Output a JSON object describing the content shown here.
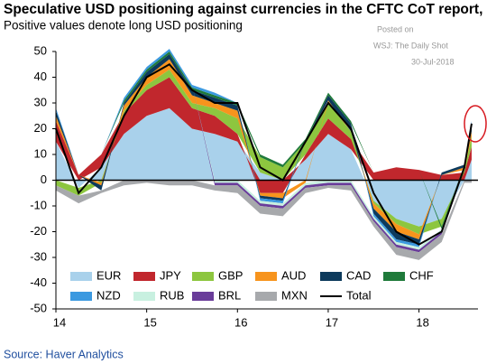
{
  "chart_data": {
    "type": "stacked_area",
    "title": "Speculative USD positioning against currencies in the CFTC CoT report, in $ bn",
    "subtitle": "Positive values denote long USD positioning",
    "annotations": [
      "Posted on",
      "WSJ: The Daily Shot",
      "30-Jul-2018"
    ],
    "source": "Source: Haver Analytics",
    "x": [
      2014.0,
      2014.25,
      2014.5,
      2014.75,
      2015.0,
      2015.25,
      2015.5,
      2015.75,
      2016.0,
      2016.25,
      2016.5,
      2016.75,
      2017.0,
      2017.25,
      2017.5,
      2017.75,
      2018.0,
      2018.25,
      2018.5,
      2018.58
    ],
    "series": [
      {
        "name": "EUR",
        "color": "#a9d1eb",
        "values": [
          15,
          -3,
          5,
          18,
          25,
          28,
          20,
          18,
          15,
          3,
          0,
          8,
          18,
          12,
          -8,
          -15,
          -18,
          -15,
          0,
          8
        ]
      },
      {
        "name": "JPY",
        "color": "#c1272d",
        "values": [
          8,
          2,
          5,
          8,
          10,
          12,
          8,
          7,
          3,
          -5,
          -5,
          2,
          6,
          4,
          3,
          5,
          4,
          2,
          3,
          5
        ]
      },
      {
        "name": "GBP",
        "color": "#8dc63f",
        "values": [
          -2,
          -3,
          -1,
          1,
          2,
          3,
          2,
          3,
          6,
          6,
          5,
          5,
          6,
          3,
          -1,
          -2,
          -3,
          -3,
          1,
          4
        ]
      },
      {
        "name": "AUD",
        "color": "#f7941d",
        "values": [
          2,
          0,
          -1,
          2,
          3,
          4,
          3,
          2,
          3,
          -1,
          -2,
          -1,
          1,
          0,
          -2,
          -3,
          -2,
          0,
          1,
          2
        ]
      },
      {
        "name": "CAD",
        "color": "#0d3a5c",
        "values": [
          2,
          0,
          -2,
          1,
          2,
          2,
          2,
          2,
          2,
          -1,
          -1,
          0,
          2,
          3,
          -2,
          -3,
          -2,
          1,
          1,
          2
        ]
      },
      {
        "name": "CHF",
        "color": "#1f7a3a",
        "values": [
          0,
          0,
          0,
          1,
          1,
          1,
          1,
          1,
          1,
          1,
          1,
          1,
          1,
          1,
          0,
          0,
          0,
          -1,
          0,
          1
        ]
      },
      {
        "name": "NZD",
        "color": "#3b99e0",
        "values": [
          1,
          0,
          0,
          1,
          1,
          1,
          1,
          1,
          0,
          -1,
          -1,
          0,
          0,
          0,
          -1,
          -1,
          -1,
          0,
          0,
          1
        ]
      },
      {
        "name": "RUB",
        "color": "#c8f0e0",
        "values": [
          0,
          0,
          0,
          0,
          0,
          0,
          0,
          -1,
          -1,
          -1,
          -1,
          -1,
          -1,
          -1,
          -1,
          -1,
          -1,
          -1,
          0,
          0
        ]
      },
      {
        "name": "BRL",
        "color": "#6a3d9a",
        "values": [
          0,
          0,
          0,
          0,
          0,
          0,
          0,
          -1,
          -1,
          -1,
          -1,
          -1,
          -1,
          -1,
          -1,
          -1,
          -1,
          -1,
          0,
          0
        ]
      },
      {
        "name": "MXN",
        "color": "#a7a9ac",
        "values": [
          -2,
          -3,
          -1,
          -2,
          -1,
          -2,
          -2,
          -2,
          -3,
          -3,
          -3,
          -2,
          -1,
          -2,
          -2,
          -3,
          -3,
          -3,
          -1,
          -1
        ]
      }
    ],
    "total": {
      "name": "Total",
      "color": "#000000",
      "values": [
        20,
        -5,
        5,
        25,
        40,
        45,
        35,
        30,
        30,
        5,
        0,
        15,
        30,
        20,
        -5,
        -20,
        -25,
        -20,
        5,
        22
      ]
    },
    "xlim": [
      2014.0,
      2018.65
    ],
    "xticks": [
      {
        "value": 2014,
        "label": "14"
      },
      {
        "value": 2015,
        "label": "15"
      },
      {
        "value": 2016,
        "label": "16"
      },
      {
        "value": 2017,
        "label": "17"
      },
      {
        "value": 2018,
        "label": "18"
      }
    ],
    "ylim": [
      -50,
      50
    ],
    "yticks": [
      -50,
      -40,
      -30,
      -20,
      -10,
      0,
      10,
      20,
      30,
      40,
      50
    ]
  }
}
